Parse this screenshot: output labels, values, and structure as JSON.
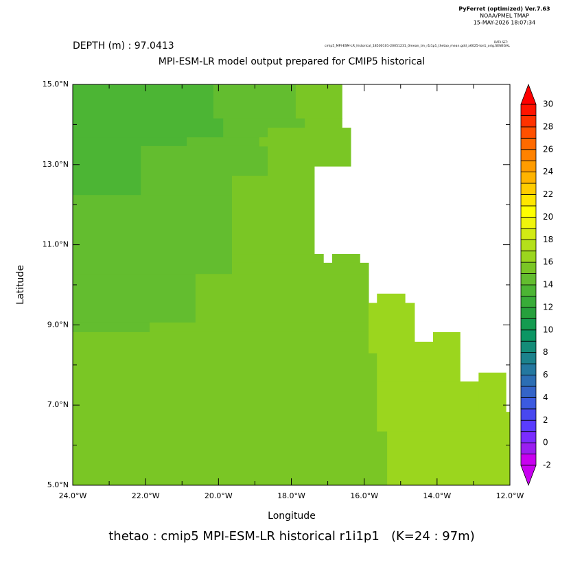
{
  "chart_data": {
    "type": "map",
    "header": [
      "PyFerret (optimized) Ver.7.63",
      "NOAA/PMEL TMAP",
      "15-MAY-2026 18:07:34"
    ],
    "dataset_label": "DATA SET:",
    "dataset": "cmip5_MPI-ESM-LR_historical_18500101-20051231_0mean_tm_r1i1p1_thetao_mean.gdd_x6025-lon1_orig.SENEGAL",
    "subtitle": "DEPTH (m) : 97.0413",
    "title": "MPI-ESM-LR model output prepared for CMIP5 historical",
    "xlabel": "Longitude",
    "ylabel": "Latitude",
    "footer": "thetao : cmip5 MPI-ESM-LR historical r1i1p1   (K=24 : 97m)",
    "xlim": [
      -24,
      -12
    ],
    "ylim": [
      5,
      15
    ],
    "xticks": [
      {
        "value": -24,
        "label": "24.0°W"
      },
      {
        "value": -22,
        "label": "22.0°W"
      },
      {
        "value": -20,
        "label": "20.0°W"
      },
      {
        "value": -18,
        "label": "18.0°W"
      },
      {
        "value": -16,
        "label": "16.0°W"
      },
      {
        "value": -14,
        "label": "14.0°W"
      },
      {
        "value": -12,
        "label": "12.0°W"
      }
    ],
    "xminor": [
      -23,
      -21,
      -19,
      -17,
      -15,
      -13
    ],
    "yticks": [
      {
        "value": 5,
        "label": "5.0°N"
      },
      {
        "value": 7,
        "label": "7.0°N"
      },
      {
        "value": 9,
        "label": "9.0°N"
      },
      {
        "value": 11,
        "label": "11.0°N"
      },
      {
        "value": 13,
        "label": "13.0°N"
      },
      {
        "value": 15,
        "label": "15.0°N"
      }
    ],
    "yminor": [
      6,
      8,
      10,
      12,
      14
    ],
    "regions": [
      {
        "lon": [
          -24,
          -20.14
        ],
        "lat": [
          14.16,
          15
        ],
        "value": 13.5
      },
      {
        "lon": [
          -24,
          -19.87
        ],
        "lat": [
          13.68,
          14.16
        ],
        "value": 13.5
      },
      {
        "lon": [
          -24,
          -20.87
        ],
        "lat": [
          13.46,
          13.68
        ],
        "value": 13.5
      },
      {
        "lon": [
          -24,
          -22.13
        ],
        "lat": [
          12.24,
          13.46
        ],
        "value": 13.5
      },
      {
        "lon": [
          -20.14,
          -17.88
        ],
        "lat": [
          14.16,
          15
        ],
        "value": 14.5
      },
      {
        "lon": [
          -19.87,
          -17.63
        ],
        "lat": [
          13.92,
          14.16
        ],
        "value": 14.5
      },
      {
        "lon": [
          -19.87,
          -18.65
        ],
        "lat": [
          13.68,
          13.92
        ],
        "value": 14.5
      },
      {
        "lon": [
          -20.87,
          -18.88
        ],
        "lat": [
          13.46,
          13.68
        ],
        "value": 14.5
      },
      {
        "lon": [
          -22.13,
          -18.65
        ],
        "lat": [
          12.72,
          13.46
        ],
        "value": 14.5
      },
      {
        "lon": [
          -22.13,
          -19.63
        ],
        "lat": [
          12.24,
          12.72
        ],
        "value": 14.5
      },
      {
        "lon": [
          -24,
          -19.63
        ],
        "lat": [
          10.27,
          12.24
        ],
        "value": 14.5
      },
      {
        "lon": [
          -24,
          -20.63
        ],
        "lat": [
          9.06,
          10.27
        ],
        "value": 14.5
      },
      {
        "lon": [
          -24,
          -21.89
        ],
        "lat": [
          8.82,
          9.06
        ],
        "value": 14.5
      },
      {
        "lon": [
          -17.88,
          -16.61
        ],
        "lat": [
          14.16,
          15
        ],
        "value": 15.5
      },
      {
        "lon": [
          -17.63,
          -16.61
        ],
        "lat": [
          13.92,
          14.16
        ],
        "value": 15.5
      },
      {
        "lon": [
          -18.65,
          -16.37
        ],
        "lat": [
          12.96,
          13.92
        ],
        "value": 15.5
      },
      {
        "lon": [
          -18.88,
          -18.65
        ],
        "lat": [
          13.46,
          13.68
        ],
        "value": 15.5
      },
      {
        "lon": [
          -18.65,
          -17.37
        ],
        "lat": [
          12.72,
          12.96
        ],
        "value": 15.5
      },
      {
        "lon": [
          -19.63,
          -17.37
        ],
        "lat": [
          10.77,
          12.72
        ],
        "value": 15.5
      },
      {
        "lon": [
          -19.63,
          -17.12
        ],
        "lat": [
          10.55,
          10.77
        ],
        "value": 15.5
      },
      {
        "lon": [
          -16.88,
          -16.12
        ],
        "lat": [
          10.55,
          10.77
        ],
        "value": 15.5
      },
      {
        "lon": [
          -19.63,
          -15.88
        ],
        "lat": [
          10.27,
          10.55
        ],
        "value": 15.5
      },
      {
        "lon": [
          -20.63,
          -15.88
        ],
        "lat": [
          9.06,
          10.27
        ],
        "value": 15.5
      },
      {
        "lon": [
          -21.89,
          -15.88
        ],
        "lat": [
          8.82,
          9.06
        ],
        "value": 15.5
      },
      {
        "lon": [
          -24,
          -15.88
        ],
        "lat": [
          8.3,
          8.82
        ],
        "value": 15.5
      },
      {
        "lon": [
          -24,
          -15.65
        ],
        "lat": [
          6.35,
          8.3
        ],
        "value": 15.5
      },
      {
        "lon": [
          -24,
          -15.37
        ],
        "lat": [
          5,
          6.35
        ],
        "value": 15.5
      },
      {
        "lon": [
          -15.65,
          -14.88
        ],
        "lat": [
          9.55,
          9.78
        ],
        "value": 16.5
      },
      {
        "lon": [
          -15.88,
          -14.62
        ],
        "lat": [
          8.58,
          9.55
        ],
        "value": 16.5
      },
      {
        "lon": [
          -15.88,
          -14.11
        ],
        "lat": [
          8.3,
          8.58
        ],
        "value": 16.5
      },
      {
        "lon": [
          -14.11,
          -13.37
        ],
        "lat": [
          8.3,
          8.82
        ],
        "value": 16.5
      },
      {
        "lon": [
          -15.65,
          -13.37
        ],
        "lat": [
          7.59,
          8.3
        ],
        "value": 16.5
      },
      {
        "lon": [
          -15.65,
          -12.86
        ],
        "lat": [
          6.83,
          7.59
        ],
        "value": 16.5
      },
      {
        "lon": [
          -12.86,
          -12.11
        ],
        "lat": [
          6.83,
          7.81
        ],
        "value": 16.5
      },
      {
        "lon": [
          -15.65,
          -12
        ],
        "lat": [
          6.35,
          6.83
        ],
        "value": 16.5
      },
      {
        "lon": [
          -15.37,
          -12
        ],
        "lat": [
          5,
          6.35
        ],
        "value": 16.5
      }
    ],
    "colorbar": {
      "levels": [
        -2,
        -1,
        0,
        1,
        2,
        3,
        4,
        5,
        6,
        7,
        8,
        9,
        10,
        11,
        12,
        13,
        14,
        15,
        16,
        17,
        18,
        19,
        20,
        21,
        22,
        23,
        24,
        25,
        26,
        27,
        28,
        29,
        30
      ],
      "colors": [
        "#c800f0",
        "#9a1ef0",
        "#7a2cff",
        "#5a3cff",
        "#4848f0",
        "#3c5ae0",
        "#3464c8",
        "#2c6eb4",
        "#2478a0",
        "#1c828c",
        "#148c78",
        "#0c9664",
        "#149b50",
        "#26a03c",
        "#38ac38",
        "#4cb534",
        "#63bd2f",
        "#7ac625",
        "#9bd61e",
        "#b4e01a",
        "#d2eb14",
        "#f0f50c",
        "#ffff00",
        "#ffe600",
        "#ffcc00",
        "#ffb400",
        "#ff9c00",
        "#ff8200",
        "#ff6a00",
        "#ff5000",
        "#ff3200",
        "#ff1400"
      ],
      "under_color": "#c800f0",
      "over_color": "#ff0000",
      "ticks": [
        -2,
        0,
        2,
        4,
        6,
        8,
        10,
        12,
        14,
        16,
        18,
        20,
        22,
        24,
        26,
        28,
        30
      ]
    }
  }
}
